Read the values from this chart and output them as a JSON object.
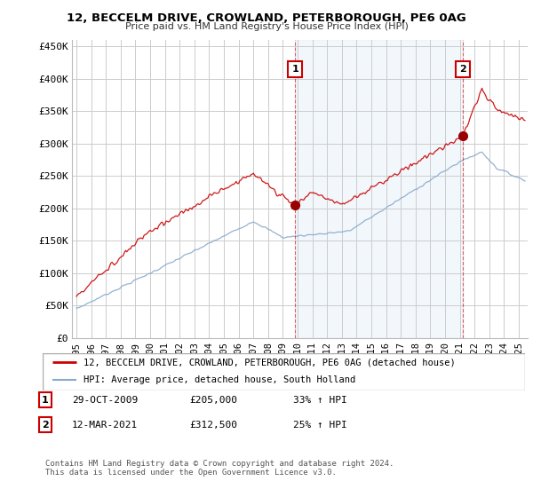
{
  "title": "12, BECCELM DRIVE, CROWLAND, PETERBOROUGH, PE6 0AG",
  "subtitle": "Price paid vs. HM Land Registry's House Price Index (HPI)",
  "background_color": "#ffffff",
  "plot_bg_color": "#ffffff",
  "grid_color": "#cccccc",
  "shade_color": "#ddeeff",
  "red_line_label": "12, BECCELM DRIVE, CROWLAND, PETERBOROUGH, PE6 0AG (detached house)",
  "blue_line_label": "HPI: Average price, detached house, South Holland",
  "annotation1_date": "29-OCT-2009",
  "annotation1_price": "£205,000",
  "annotation1_hpi": "33% ↑ HPI",
  "annotation2_date": "12-MAR-2021",
  "annotation2_price": "£312,500",
  "annotation2_hpi": "25% ↑ HPI",
  "footer": "Contains HM Land Registry data © Crown copyright and database right 2024.\nThis data is licensed under the Open Government Licence v3.0.",
  "ylim": [
    0,
    460000
  ],
  "yticks": [
    0,
    50000,
    100000,
    150000,
    200000,
    250000,
    300000,
    350000,
    400000,
    450000
  ],
  "ytick_labels": [
    "£0",
    "£50K",
    "£100K",
    "£150K",
    "£200K",
    "£250K",
    "£300K",
    "£350K",
    "£400K",
    "£450K"
  ],
  "xtick_years": [
    1995,
    1996,
    1997,
    1998,
    1999,
    2000,
    2001,
    2002,
    2003,
    2004,
    2005,
    2006,
    2007,
    2008,
    2009,
    2010,
    2011,
    2012,
    2013,
    2014,
    2015,
    2016,
    2017,
    2018,
    2019,
    2020,
    2021,
    2022,
    2023,
    2024,
    2025
  ],
  "marker1_x": 2009.83,
  "marker1_y": 205000,
  "marker2_x": 2021.2,
  "marker2_y": 312500,
  "vline1_x": 2009.83,
  "vline2_x": 2021.2,
  "red_color": "#cc0000",
  "blue_color": "#88aacc",
  "marker_color": "#990000",
  "xlim_left": 1994.7,
  "xlim_right": 2025.6
}
